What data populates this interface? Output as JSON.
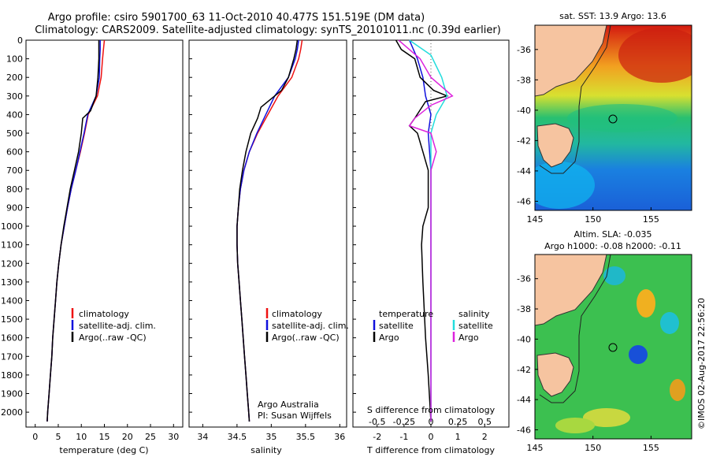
{
  "header": {
    "title_line1": "Argo profile: csiro 5901700_63 11-Oct-2010 40.477S 151.519E (DM data)",
    "title_line2": "Climatology: CARS2009. Satellite-adjusted climatology: synTS_20101011.nc (0.39d earlier)"
  },
  "colors": {
    "climatology": "#ee1111",
    "satellite": "#1010dd",
    "argo": "#000000",
    "sal_satellite": "#22dddd",
    "sal_argo": "#dd22dd",
    "land": "#f6c4a0"
  },
  "chart_data": [
    {
      "type": "line",
      "name": "temperature-profile",
      "xlabel": "temperature (deg C)",
      "ylabel": "",
      "xlim": [
        -2,
        32
      ],
      "ylim": [
        0,
        2080
      ],
      "xticks": [
        0,
        5,
        10,
        15,
        20,
        25,
        30
      ],
      "yticks": [
        0,
        100,
        200,
        300,
        400,
        500,
        600,
        700,
        800,
        900,
        1000,
        1100,
        1200,
        1300,
        1400,
        1500,
        1600,
        1700,
        1800,
        1900,
        2000
      ],
      "legend": [
        "climatology",
        "satellite-adj. clim.",
        "Argo(..raw -QC)"
      ],
      "series": [
        {
          "name": "climatology",
          "color": "#ee1111",
          "points": [
            [
              15,
              0
            ],
            [
              14.8,
              50
            ],
            [
              14.6,
              100
            ],
            [
              14.3,
              200
            ],
            [
              13.5,
              300
            ],
            [
              11.5,
              400
            ],
            [
              10.7,
              500
            ],
            [
              9.8,
              600
            ],
            [
              8.8,
              700
            ],
            [
              7.8,
              800
            ],
            [
              7.0,
              900
            ],
            [
              6.3,
              1000
            ],
            [
              5.6,
              1100
            ],
            [
              5.1,
              1200
            ],
            [
              4.7,
              1300
            ],
            [
              4.4,
              1400
            ],
            [
              4.1,
              1500
            ],
            [
              3.8,
              1600
            ],
            [
              3.6,
              1700
            ],
            [
              3.3,
              1800
            ],
            [
              3.0,
              1900
            ],
            [
              2.7,
              2000
            ],
            [
              2.6,
              2050
            ]
          ]
        },
        {
          "name": "satellite",
          "color": "#1010dd",
          "points": [
            [
              14.1,
              0
            ],
            [
              14.1,
              50
            ],
            [
              14.0,
              100
            ],
            [
              13.9,
              200
            ],
            [
              13.2,
              300
            ],
            [
              11.4,
              400
            ],
            [
              10.6,
              500
            ],
            [
              9.7,
              600
            ],
            [
              8.8,
              700
            ],
            [
              7.8,
              800
            ],
            [
              7.0,
              900
            ],
            [
              6.3,
              1000
            ],
            [
              5.6,
              1100
            ],
            [
              5.1,
              1200
            ],
            [
              4.7,
              1300
            ],
            [
              4.4,
              1400
            ],
            [
              4.1,
              1500
            ],
            [
              3.8,
              1600
            ],
            [
              3.6,
              1700
            ],
            [
              3.3,
              1800
            ],
            [
              3.0,
              1900
            ],
            [
              2.7,
              2000
            ],
            [
              2.6,
              2050
            ]
          ]
        },
        {
          "name": "argo",
          "color": "#000000",
          "points": [
            [
              13.8,
              0
            ],
            [
              13.8,
              50
            ],
            [
              13.8,
              100
            ],
            [
              13.6,
              200
            ],
            [
              13.2,
              300
            ],
            [
              12.0,
              380
            ],
            [
              10.3,
              420
            ],
            [
              10.0,
              500
            ],
            [
              9.4,
              600
            ],
            [
              8.5,
              700
            ],
            [
              7.6,
              800
            ],
            [
              6.9,
              900
            ],
            [
              6.2,
              1000
            ],
            [
              5.6,
              1100
            ],
            [
              5.1,
              1200
            ],
            [
              4.7,
              1300
            ],
            [
              4.4,
              1400
            ],
            [
              4.1,
              1500
            ],
            [
              3.8,
              1600
            ],
            [
              3.6,
              1700
            ],
            [
              3.3,
              1800
            ],
            [
              3.0,
              1900
            ],
            [
              2.7,
              2000
            ],
            [
              2.6,
              2050
            ]
          ]
        }
      ]
    },
    {
      "type": "line",
      "name": "salinity-profile",
      "xlabel": "salinity",
      "xlim": [
        33.8,
        36.1
      ],
      "ylim": [
        0,
        2080
      ],
      "xticks": [
        34,
        34.5,
        35,
        35.5,
        36
      ],
      "legend": [
        "climatology",
        "satellite-adj. clim.",
        "Argo(..raw -QC)"
      ],
      "footer": [
        "Argo Australia",
        "PI: Susan Wijffels"
      ],
      "series": [
        {
          "name": "climatology",
          "color": "#ee1111",
          "points": [
            [
              35.45,
              0
            ],
            [
              35.43,
              50
            ],
            [
              35.4,
              100
            ],
            [
              35.3,
              200
            ],
            [
              35.1,
              300
            ],
            [
              34.95,
              400
            ],
            [
              34.8,
              500
            ],
            [
              34.68,
              600
            ],
            [
              34.6,
              700
            ],
            [
              34.55,
              800
            ],
            [
              34.52,
              900
            ],
            [
              34.5,
              1000
            ],
            [
              34.5,
              1100
            ],
            [
              34.51,
              1200
            ],
            [
              34.53,
              1300
            ],
            [
              34.55,
              1400
            ],
            [
              34.57,
              1500
            ],
            [
              34.59,
              1600
            ],
            [
              34.61,
              1700
            ],
            [
              34.63,
              1800
            ],
            [
              34.65,
              1900
            ],
            [
              34.67,
              2000
            ],
            [
              34.68,
              2050
            ]
          ]
        },
        {
          "name": "satellite",
          "color": "#1010dd",
          "points": [
            [
              35.4,
              0
            ],
            [
              35.38,
              50
            ],
            [
              35.35,
              100
            ],
            [
              35.25,
              200
            ],
            [
              35.05,
              300
            ],
            [
              34.92,
              400
            ],
            [
              34.79,
              500
            ],
            [
              34.68,
              600
            ],
            [
              34.6,
              700
            ],
            [
              34.55,
              800
            ],
            [
              34.52,
              900
            ],
            [
              34.5,
              1000
            ],
            [
              34.5,
              1100
            ],
            [
              34.51,
              1200
            ],
            [
              34.53,
              1300
            ],
            [
              34.55,
              1400
            ],
            [
              34.57,
              1500
            ],
            [
              34.59,
              1600
            ],
            [
              34.61,
              1700
            ],
            [
              34.63,
              1800
            ],
            [
              34.65,
              1900
            ],
            [
              34.67,
              2000
            ],
            [
              34.68,
              2050
            ]
          ]
        },
        {
          "name": "argo",
          "color": "#000000",
          "points": [
            [
              35.38,
              0
            ],
            [
              35.36,
              50
            ],
            [
              35.33,
              100
            ],
            [
              35.25,
              200
            ],
            [
              35.15,
              270
            ],
            [
              34.85,
              360
            ],
            [
              34.8,
              420
            ],
            [
              34.7,
              500
            ],
            [
              34.63,
              600
            ],
            [
              34.58,
              700
            ],
            [
              34.54,
              800
            ],
            [
              34.52,
              900
            ],
            [
              34.5,
              1000
            ],
            [
              34.5,
              1100
            ],
            [
              34.51,
              1200
            ],
            [
              34.53,
              1300
            ],
            [
              34.55,
              1400
            ],
            [
              34.57,
              1500
            ],
            [
              34.59,
              1600
            ],
            [
              34.61,
              1700
            ],
            [
              34.63,
              1800
            ],
            [
              34.65,
              1900
            ],
            [
              34.67,
              2000
            ],
            [
              34.68,
              2050
            ]
          ]
        }
      ]
    },
    {
      "type": "line",
      "name": "difference-profile",
      "xlabel_top": "S difference from climatology",
      "xlabel_bottom": "T difference from climatology",
      "s_ticks": [
        "-0.5",
        "-0.25",
        "0",
        "0.25",
        "0.5"
      ],
      "t_ticks": [
        "-2",
        "-1",
        "0",
        "1",
        "2"
      ],
      "t_xlim": [
        -2.9,
        2.9
      ],
      "ylim": [
        0,
        2080
      ],
      "legend_temperature": [
        "temperature",
        "satellite",
        "Argo"
      ],
      "legend_salinity": [
        "salinity",
        "satellite",
        "Argo"
      ],
      "series": [
        {
          "name": "T satellite",
          "color": "#1010dd",
          "points": [
            [
              -0.8,
              0
            ],
            [
              -0.5,
              100
            ],
            [
              -0.3,
              200
            ],
            [
              -0.2,
              300
            ],
            [
              0.0,
              400
            ],
            [
              -0.1,
              500
            ],
            [
              0,
              700
            ],
            [
              0,
              2050
            ]
          ]
        },
        {
          "name": "T argo",
          "color": "#000000",
          "points": [
            [
              -1.3,
              0
            ],
            [
              -1.1,
              50
            ],
            [
              -0.6,
              100
            ],
            [
              -0.4,
              200
            ],
            [
              0.1,
              270
            ],
            [
              0.6,
              300
            ],
            [
              -0.2,
              330
            ],
            [
              -0.6,
              420
            ],
            [
              -0.8,
              460
            ],
            [
              -0.5,
              500
            ],
            [
              -0.3,
              600
            ],
            [
              -0.1,
              700
            ],
            [
              -0.1,
              900
            ],
            [
              -0.3,
              1000
            ],
            [
              -0.35,
              1100
            ],
            [
              -0.3,
              1300
            ],
            [
              -0.2,
              1600
            ],
            [
              -0.1,
              1800
            ],
            [
              0,
              2050
            ]
          ]
        },
        {
          "name": "S satellite",
          "color": "#22dddd",
          "points": [
            [
              -0.2,
              0
            ],
            [
              0.0,
              80
            ],
            [
              0.1,
              200
            ],
            [
              0.15,
              300
            ],
            [
              0.05,
              400
            ],
            [
              0.0,
              500
            ],
            [
              0.0,
              2050
            ]
          ]
        },
        {
          "name": "S argo",
          "color": "#dd22dd",
          "points": [
            [
              -0.3,
              0
            ],
            [
              -0.1,
              100
            ],
            [
              0.0,
              200
            ],
            [
              0.2,
              300
            ],
            [
              0.0,
              350
            ],
            [
              -0.15,
              420
            ],
            [
              -0.2,
              460
            ],
            [
              0.0,
              500
            ],
            [
              0.05,
              600
            ],
            [
              0.0,
              700
            ],
            [
              0.0,
              2050
            ]
          ]
        }
      ]
    },
    {
      "type": "heatmap",
      "name": "sst-map",
      "title": "sat. SST: 13.9 Argo: 13.6",
      "xticks": [
        "145",
        "150",
        "155"
      ],
      "yticks": [
        "-36",
        "-38",
        "-40",
        "-42",
        "-44",
        "-46"
      ],
      "xlim": [
        145,
        158.5
      ],
      "ylim": [
        -46.6,
        -34.4
      ],
      "argo_position": [
        151.519,
        -40.477
      ]
    },
    {
      "type": "heatmap",
      "name": "sla-map",
      "title_line1": "Altim. SLA: -0.035",
      "title_line2": "Argo h1000: -0.08 h2000: -0.11",
      "xticks": [
        "145",
        "150",
        "155"
      ],
      "yticks": [
        "-36",
        "-38",
        "-40",
        "-42",
        "-44",
        "-46"
      ],
      "xlim": [
        145,
        158.5
      ],
      "ylim": [
        -46.6,
        -34.4
      ],
      "argo_position": [
        151.519,
        -40.477
      ]
    }
  ],
  "credit": "©IMOS 02-Aug-2017 22:56:20"
}
